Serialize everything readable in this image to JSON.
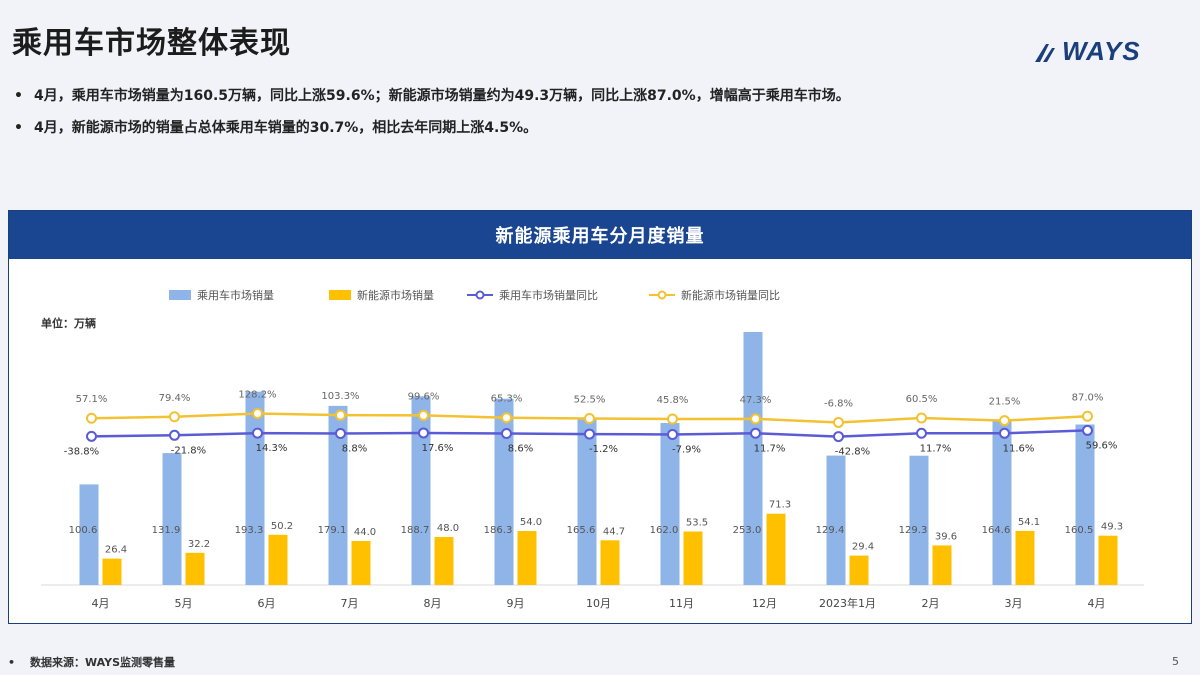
{
  "title": "乘用车市场整体表现",
  "logo": {
    "text": "WAYS"
  },
  "bullets": [
    "4月，乘用车市场销量为160.5万辆，同比上涨59.6%；新能源市场销量约为49.3万辆，同比上涨87.0%，增幅高于乘用车市场。",
    "4月，新能源市场的销量占总体乘用车销量的30.7%，相比去年同期上涨4.5%。"
  ],
  "bullet_marker": "•",
  "chart_header": "新能源乘用车分月度销量",
  "unit": "单位：万辆",
  "footer": {
    "marker": "•",
    "source": "数据来源：WAYS监测零售量",
    "page": "5"
  },
  "colors": {
    "total_sales": "#8fb4e8",
    "nev_sales": "#ffc000",
    "total_yoy": "#5b5bd6",
    "nev_yoy": "#f2c232",
    "header_bg": "#1a4590"
  },
  "chart_data": {
    "type": "bar",
    "categories": [
      "4月",
      "5月",
      "6月",
      "7月",
      "8月",
      "9月",
      "10月",
      "11月",
      "12月",
      "2023年1月",
      "2月",
      "3月",
      "4月"
    ],
    "series": [
      {
        "name": "乘用车市场销量",
        "kind": "bar",
        "values": [
          100.6,
          131.9,
          193.3,
          179.1,
          188.7,
          186.3,
          165.6,
          162.0,
          253.0,
          129.4,
          129.3,
          164.6,
          160.5
        ],
        "labels": [
          "100.6",
          "131.9",
          "193.3",
          "179.1",
          "188.7",
          "186.3",
          "165.6",
          "162.0",
          "253.0",
          "129.4",
          "129.3",
          "164.6",
          "160.5"
        ]
      },
      {
        "name": "新能源市场销量",
        "kind": "bar",
        "values": [
          26.4,
          32.2,
          50.2,
          44.0,
          48.0,
          54.0,
          44.7,
          53.5,
          71.3,
          29.4,
          39.6,
          54.1,
          49.3
        ],
        "labels": [
          "26.4",
          "32.2",
          "50.2",
          "44.0",
          "48.0",
          "54.0",
          "44.7",
          "53.5",
          "71.3",
          "29.4",
          "39.6",
          "54.1",
          "49.3"
        ]
      },
      {
        "name": "乘用车市场销量同比",
        "kind": "line",
        "values": [
          -38.8,
          -21.8,
          14.3,
          8.8,
          17.6,
          8.6,
          -1.2,
          -7.9,
          11.7,
          -42.8,
          11.7,
          11.6,
          59.6
        ],
        "labels": [
          "-38.8%",
          "-21.8%",
          "14.3%",
          "8.8%",
          "17.6%",
          "8.6%",
          "-1.2%",
          "-7.9%",
          "11.7%",
          "-42.8%",
          "11.7%",
          "11.6%",
          "59.6%"
        ]
      },
      {
        "name": "新能源市场销量同比",
        "kind": "line",
        "values": [
          57.1,
          79.4,
          128.2,
          103.3,
          99.6,
          65.3,
          52.5,
          45.8,
          47.3,
          -6.8,
          60.5,
          21.5,
          87.0
        ],
        "labels": [
          "57.1%",
          "79.4%",
          "128.2%",
          "103.3%",
          "99.6%",
          "65.3%",
          "52.5%",
          "45.8%",
          "47.3%",
          "-6.8%",
          "60.5%",
          "21.5%",
          "87.0%"
        ]
      }
    ],
    "ylim_sales": [
      0,
      260
    ],
    "legend": "top",
    "grid": false
  }
}
